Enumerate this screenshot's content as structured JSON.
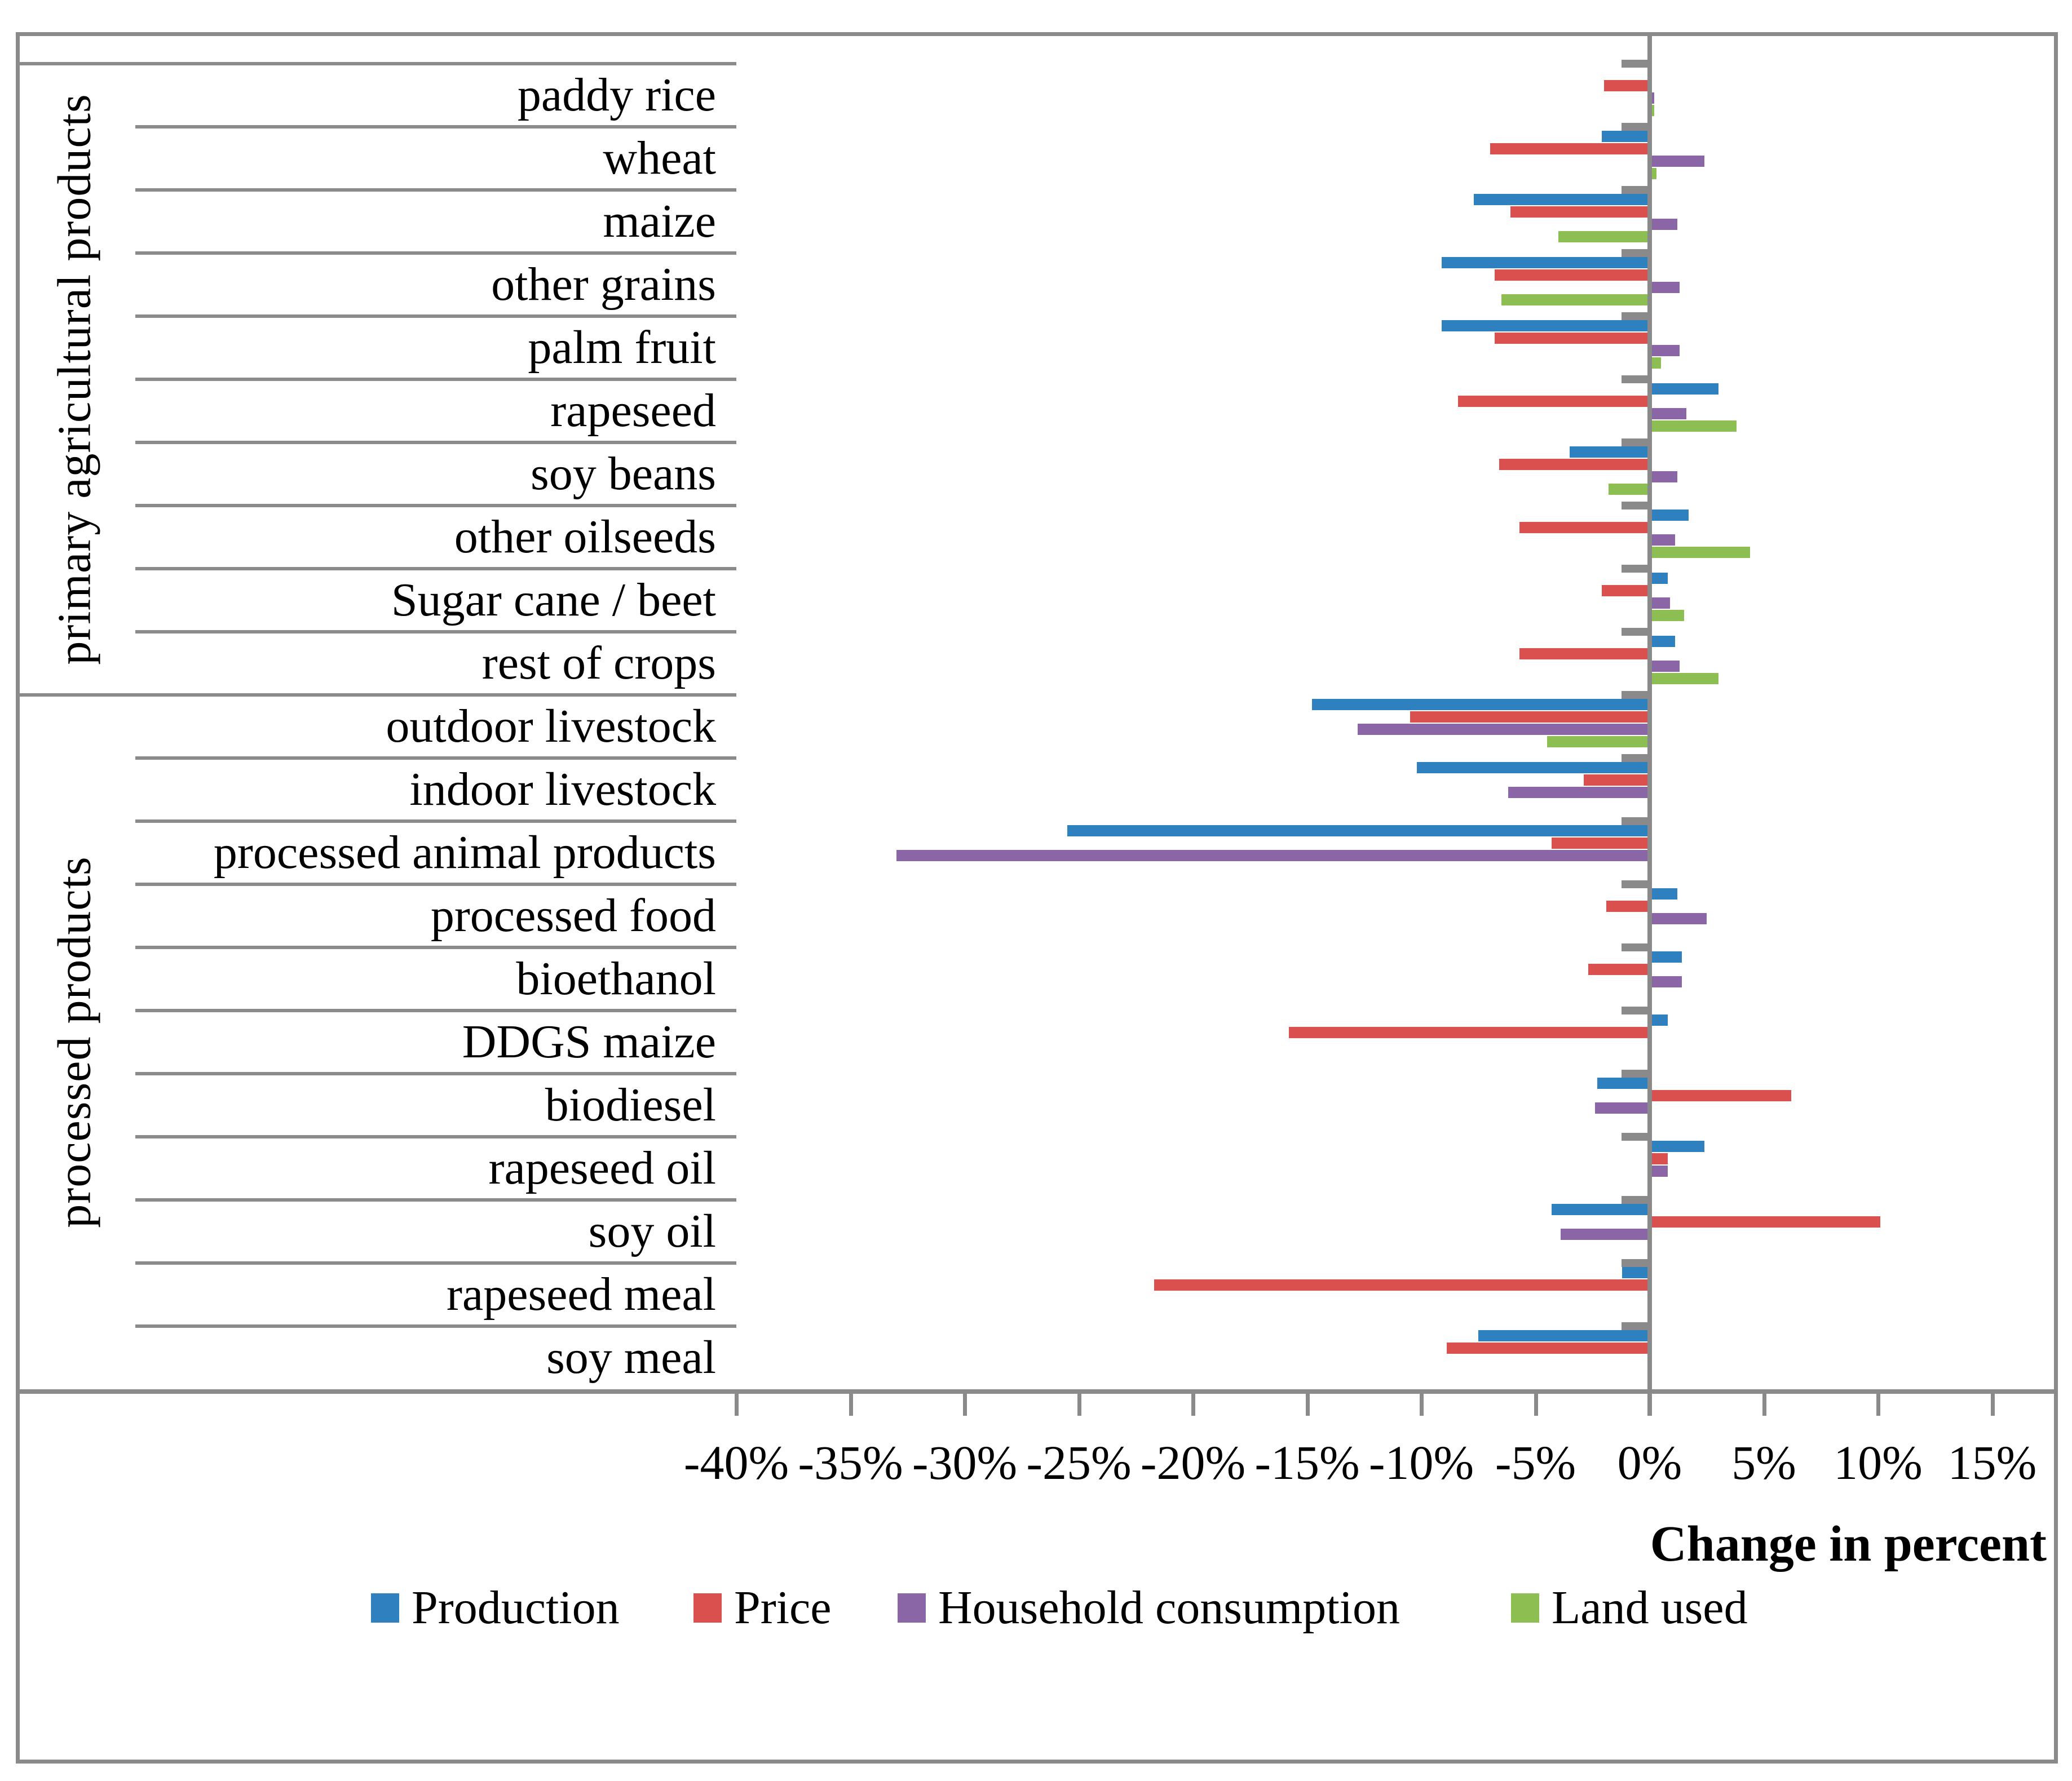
{
  "chart_data": {
    "type": "bar",
    "orientation": "horizontal",
    "xlabel": "Change in percent",
    "x_ticks": [
      "-40%",
      "-35%",
      "-30%",
      "-25%",
      "-20%",
      "-15%",
      "-10%",
      "-5%",
      "0%",
      "5%",
      "10%",
      "15%"
    ],
    "x_tick_values": [
      -40,
      -35,
      -30,
      -25,
      -20,
      -15,
      -10,
      -5,
      0,
      5,
      10,
      15
    ],
    "xlim": [
      -40,
      17.7
    ],
    "grid": "row-separator-lines, zero-axis line, no vertical gridlines",
    "legend_position": "bottom",
    "groups": [
      {
        "label": "primary agricultural products",
        "from": 0,
        "to": 10
      },
      {
        "label": "processed products",
        "from": 10,
        "to": 21
      }
    ],
    "categories": [
      "paddy rice",
      "wheat",
      "maize",
      "other grains",
      "palm fruit",
      "rapeseed",
      "soy beans",
      "other oilseeds",
      "Sugar cane / beet",
      "rest of crops",
      "outdoor livestock",
      "indoor livestock",
      "processed animal products",
      "processed food",
      "bioethanol",
      "DDGS maize",
      "biodiesel",
      "rapeseed oil",
      "soy oil",
      "rapeseed meal",
      "soy meal"
    ],
    "unit": "percent",
    "series": [
      {
        "name": "Production",
        "color": "#2E80BF",
        "values": [
          0,
          -2.1,
          -7.7,
          -9.1,
          -9.1,
          3.0,
          -3.5,
          1.7,
          0.8,
          1.1,
          -14.8,
          -10.2,
          -25.5,
          1.2,
          1.4,
          0.8,
          -2.3,
          2.4,
          -4.3,
          -1.2,
          -7.5
        ]
      },
      {
        "name": "Price",
        "color": "#D9504E",
        "values": [
          -2.0,
          -7.0,
          -6.1,
          -6.8,
          -6.8,
          -8.4,
          -6.6,
          -5.7,
          -2.1,
          -5.7,
          -10.5,
          -2.9,
          -4.3,
          -1.9,
          -2.7,
          -15.8,
          6.2,
          0.8,
          10.1,
          -21.7,
          -8.9
        ]
      },
      {
        "name": "Household consumption",
        "color": "#8A66A6",
        "values": [
          0.2,
          2.4,
          1.2,
          1.3,
          1.3,
          1.6,
          1.2,
          1.1,
          0.9,
          1.3,
          -12.8,
          -6.2,
          -33.0,
          2.5,
          1.4,
          0,
          -2.4,
          0.8,
          -3.9,
          0,
          0
        ]
      },
      {
        "name": "Land used",
        "color": "#8DBE51",
        "values": [
          0.2,
          0.3,
          -4.0,
          -6.5,
          0.5,
          3.8,
          -1.8,
          4.4,
          1.5,
          3.0,
          -4.5,
          0,
          0,
          0,
          0,
          0,
          0,
          0,
          0,
          0,
          0
        ]
      }
    ]
  },
  "colors": {
    "production": "#2E80BF",
    "price": "#D9504E",
    "household_consumption": "#8A66A6",
    "land_used": "#8DBE51",
    "axis_gray": "#8a8a8a",
    "text": "#000000",
    "background": "#ffffff"
  }
}
